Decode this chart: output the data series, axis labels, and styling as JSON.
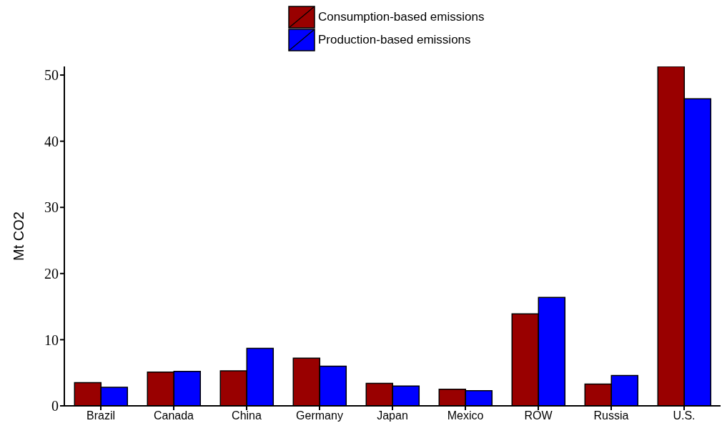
{
  "chart_data": {
    "type": "bar",
    "ylabel": "Mt CO2",
    "categories": [
      "Brazil",
      "Canada",
      "China",
      "Germany",
      "Japan",
      "Mexico",
      "ROW",
      "Russia",
      "U.S."
    ],
    "series": [
      {
        "name": "Consumption-based emissions",
        "color": "#990000",
        "values": [
          3.5,
          5.1,
          5.3,
          7.2,
          3.4,
          2.5,
          13.9,
          3.3,
          51.3
        ]
      },
      {
        "name": "Production-based emissions",
        "color": "#0000ff",
        "values": [
          2.8,
          5.2,
          8.7,
          6.0,
          3.0,
          2.3,
          16.4,
          4.6,
          46.4
        ]
      }
    ],
    "ylim": [
      0,
      51.3
    ],
    "yticks": [
      0,
      10,
      20,
      30,
      40,
      50
    ],
    "legend": "top"
  }
}
